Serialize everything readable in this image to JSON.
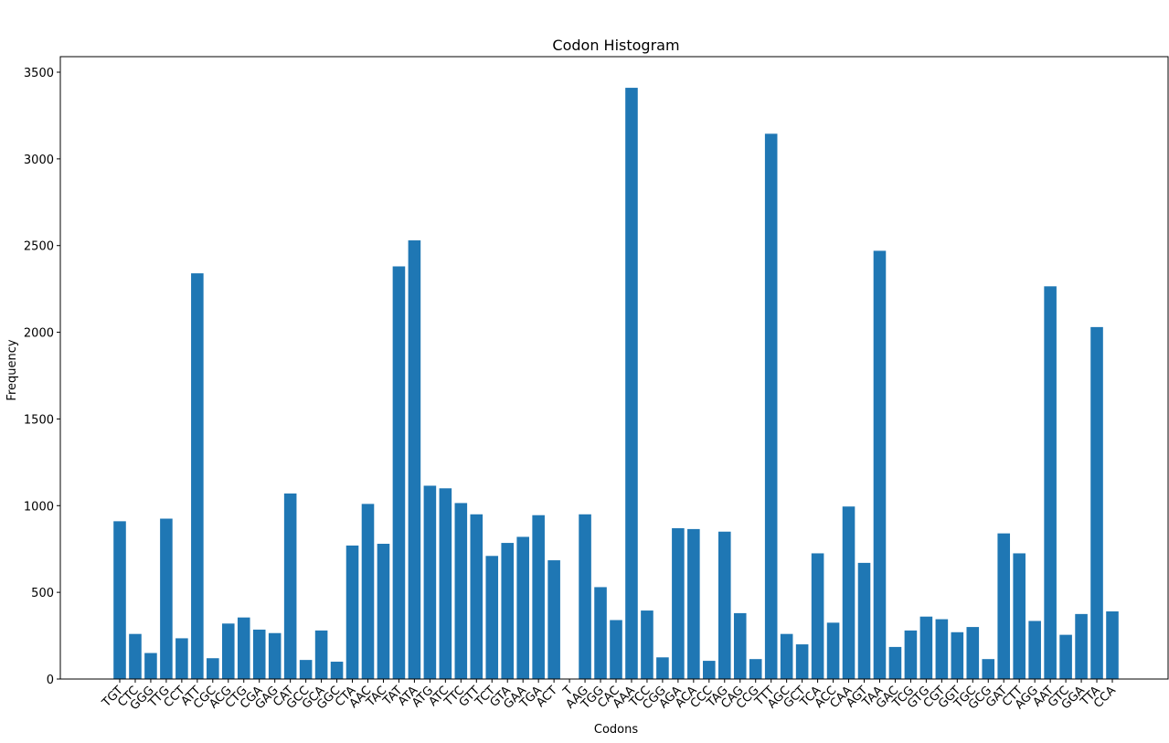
{
  "chart_data": {
    "type": "bar",
    "title": "Codon Histogram",
    "xlabel": "Codons",
    "ylabel": "Frequency",
    "ylim": [
      0,
      3600
    ],
    "yticks": [
      0,
      500,
      1000,
      1500,
      2000,
      2500,
      3000,
      3500
    ],
    "grid": false,
    "bar_color": "#1f77b4",
    "categories": [
      "TGT",
      "CTC",
      "GGG",
      "TTG",
      "CCT",
      "ATT",
      "CGC",
      "ACG",
      "CTG",
      "CGA",
      "GAG",
      "CAT",
      "GCC",
      "GCA",
      "GGC",
      "CTA",
      "AAC",
      "TAC",
      "TAT",
      "ATA",
      "ATG",
      "ATC",
      "TTC",
      "GTT",
      "TCT",
      "GTA",
      "GAA",
      "TGA",
      "ACT",
      "T",
      "AAG",
      "TGG",
      "CAC",
      "AAA",
      "TCC",
      "CGG",
      "AGA",
      "ACA",
      "CCC",
      "TAG",
      "CAG",
      "CCG",
      "TTT",
      "AGC",
      "GCT",
      "TCA",
      "ACC",
      "CAA",
      "AGT",
      "TAA",
      "GAC",
      "TCG",
      "GTG",
      "CGT",
      "GGT",
      "TGC",
      "GCG",
      "GAT",
      "CTT",
      "AGG",
      "AAT",
      "GTC",
      "GGA",
      "TTA",
      "CCA"
    ],
    "values": [
      910,
      260,
      150,
      925,
      235,
      2340,
      120,
      320,
      355,
      285,
      265,
      1070,
      110,
      280,
      100,
      770,
      1010,
      780,
      2380,
      2530,
      1115,
      1100,
      1015,
      950,
      710,
      785,
      820,
      945,
      685,
      0,
      950,
      530,
      340,
      3410,
      395,
      125,
      870,
      865,
      105,
      850,
      380,
      115,
      3145,
      260,
      200,
      725,
      325,
      995,
      670,
      2470,
      185,
      280,
      360,
      345,
      270,
      300,
      115,
      840,
      725,
      335,
      2265,
      255,
      375,
      2030,
      390
    ]
  }
}
